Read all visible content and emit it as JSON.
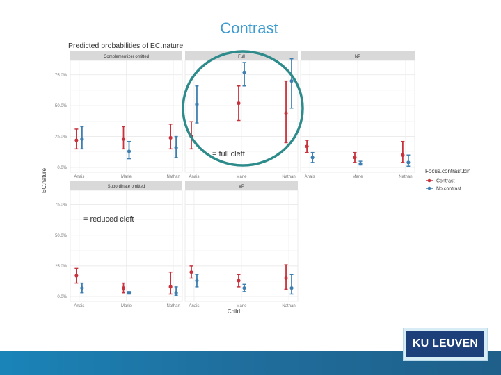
{
  "slide": {
    "title": "Contrast",
    "annotation_full": "= full cleft",
    "annotation_reduced": "= reduced cleft",
    "logo_text": "KU LEUVEN",
    "highlight_color": "#2e8b8b"
  },
  "chart_data": {
    "type": "scatter",
    "title": "Predicted probabilities of EC.nature",
    "xlabel": "Child",
    "ylabel": "EC.nature",
    "categories": [
      "Anais",
      "Marie",
      "Nathan"
    ],
    "ylim": [
      0,
      0.85
    ],
    "yticks": [
      0,
      0.25,
      0.5,
      0.75
    ],
    "ytick_labels": [
      "0.0%",
      "25.0%",
      "50.0%",
      "75.0%"
    ],
    "grid": true,
    "legend": {
      "title": "Focus.contrast.bin",
      "position": "right",
      "entries": [
        {
          "name": "Contrast",
          "color": "#c8323c"
        },
        {
          "name": "No.contrast",
          "color": "#3d7fb0"
        }
      ]
    },
    "panels": [
      {
        "title": "Complementizer omitted",
        "series": [
          {
            "name": "Contrast",
            "values": [
              0.22,
              0.23,
              0.24
            ],
            "lower": [
              0.15,
              0.15,
              0.15
            ],
            "upper": [
              0.31,
              0.33,
              0.35
            ]
          },
          {
            "name": "No.contrast",
            "values": [
              0.23,
              0.13,
              0.16
            ],
            "lower": [
              0.15,
              0.07,
              0.08
            ],
            "upper": [
              0.33,
              0.21,
              0.25
            ]
          }
        ]
      },
      {
        "title": "Full",
        "series": [
          {
            "name": "Contrast",
            "values": [
              0.25,
              0.52,
              0.44
            ],
            "lower": [
              0.15,
              0.38,
              0.2
            ],
            "upper": [
              0.37,
              0.66,
              0.7
            ]
          },
          {
            "name": "No.contrast",
            "values": [
              0.51,
              0.77,
              0.7
            ],
            "lower": [
              0.36,
              0.66,
              0.48
            ],
            "upper": [
              0.66,
              0.85,
              0.88
            ]
          }
        ]
      },
      {
        "title": "NP",
        "series": [
          {
            "name": "Contrast",
            "values": [
              0.17,
              0.08,
              0.1
            ],
            "lower": [
              0.12,
              0.04,
              0.04
            ],
            "upper": [
              0.22,
              0.12,
              0.21
            ]
          },
          {
            "name": "No.contrast",
            "values": [
              0.08,
              0.03,
              0.04
            ],
            "lower": [
              0.04,
              0.02,
              0.01
            ],
            "upper": [
              0.12,
              0.05,
              0.1
            ]
          }
        ]
      },
      {
        "title": "Subordinate omitted",
        "series": [
          {
            "name": "Contrast",
            "values": [
              0.17,
              0.07,
              0.08
            ],
            "lower": [
              0.11,
              0.03,
              0.02
            ],
            "upper": [
              0.23,
              0.11,
              0.2
            ]
          },
          {
            "name": "No.contrast",
            "values": [
              0.07,
              0.03,
              0.03
            ],
            "lower": [
              0.03,
              0.02,
              0.01
            ],
            "upper": [
              0.11,
              0.04,
              0.08
            ]
          }
        ]
      },
      {
        "title": "VP",
        "series": [
          {
            "name": "Contrast",
            "values": [
              0.2,
              0.13,
              0.15
            ],
            "lower": [
              0.15,
              0.08,
              0.06
            ],
            "upper": [
              0.25,
              0.18,
              0.26
            ]
          },
          {
            "name": "No.contrast",
            "values": [
              0.13,
              0.07,
              0.07
            ],
            "lower": [
              0.08,
              0.04,
              0.02
            ],
            "upper": [
              0.18,
              0.1,
              0.18
            ]
          }
        ]
      }
    ]
  }
}
